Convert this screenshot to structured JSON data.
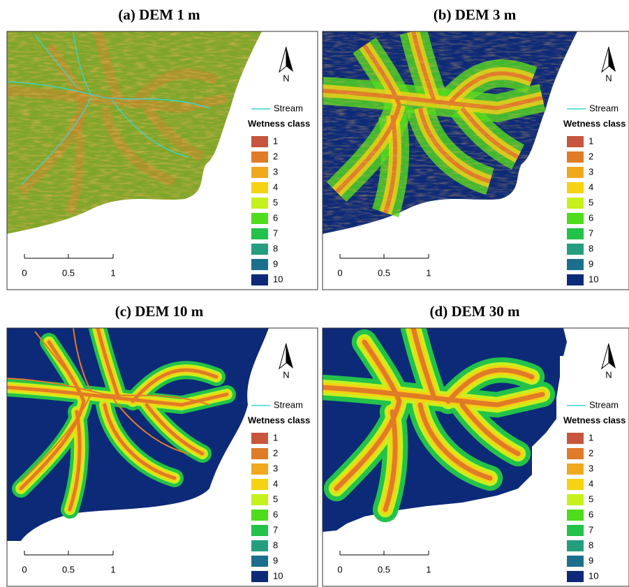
{
  "class_colors": [
    "#c8553d",
    "#e07b28",
    "#f0a81e",
    "#f5d313",
    "#c6f01e",
    "#4fdc1c",
    "#23c24a",
    "#259e7f",
    "#1b6f8c",
    "#0d2a78"
  ],
  "stream_color": "#39d6d6",
  "panels": [
    {
      "title": "(a) DEM 1 m",
      "north": "N",
      "legend": {
        "stream": "Stream",
        "title": "Wetness class",
        "classes": [
          "1",
          "2",
          "3",
          "4",
          "5",
          "6",
          "7",
          "8",
          "9",
          "10"
        ]
      },
      "scale": [
        "0",
        "0.5",
        "1"
      ]
    },
    {
      "title": "(b) DEM 3 m",
      "north": "N",
      "legend": {
        "stream": "Stream",
        "title": "Wetness class",
        "classes": [
          "1",
          "2",
          "3",
          "4",
          "5",
          "6",
          "7",
          "8",
          "9",
          "10"
        ]
      },
      "scale": [
        "0",
        "0.5",
        "1"
      ]
    },
    {
      "title": "(c) DEM 10 m",
      "north": "N",
      "legend": {
        "stream": "Stream",
        "title": "Wetness class",
        "classes": [
          "1",
          "2",
          "3",
          "4",
          "5",
          "6",
          "7",
          "8",
          "9",
          "10"
        ]
      },
      "scale": [
        "0",
        "0.5",
        "1"
      ]
    },
    {
      "title": "(d) DEM 30 m",
      "north": "N",
      "legend": {
        "stream": "Stream",
        "title": "Wetness class",
        "classes": [
          "1",
          "2",
          "3",
          "4",
          "5",
          "6",
          "7",
          "8",
          "9",
          "10"
        ]
      },
      "scale": [
        "0",
        "0.5",
        "1"
      ]
    }
  ]
}
